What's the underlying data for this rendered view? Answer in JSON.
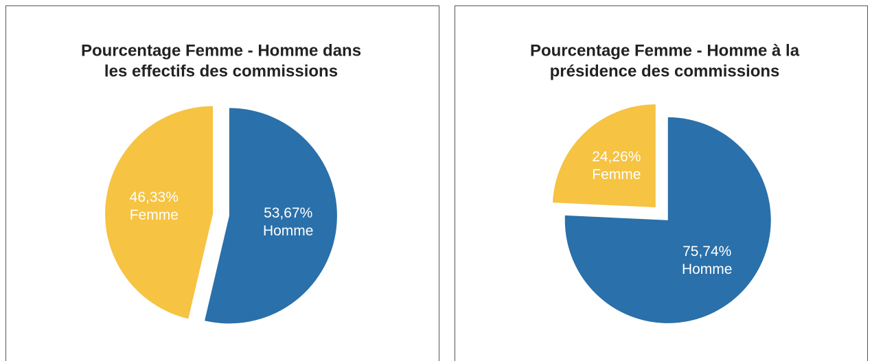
{
  "chart_data": [
    {
      "type": "pie",
      "title": [
        "Pourcentage Femme - Homme dans",
        "les effectifs des commissions"
      ],
      "categories": [
        "Homme",
        "Femme"
      ],
      "values": [
        53.67,
        46.33
      ],
      "value_labels": [
        "53,67%",
        "46,33%"
      ],
      "colors": [
        "#2a70aa",
        "#f6c342"
      ]
    },
    {
      "type": "pie",
      "title": [
        "Pourcentage Femme - Homme à la",
        "présidence des commissions"
      ],
      "categories": [
        "Homme",
        "Femme"
      ],
      "values": [
        75.74,
        24.26
      ],
      "value_labels": [
        "75,74%",
        "24,26%"
      ],
      "colors": [
        "#2a70aa",
        "#f6c342"
      ]
    }
  ]
}
